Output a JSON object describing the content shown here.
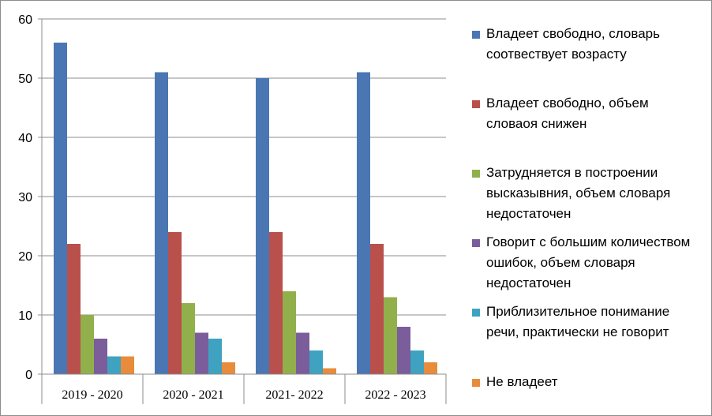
{
  "chart_data": {
    "type": "bar",
    "categories": [
      "2019 - 2020",
      "2020 - 2021",
      "2021- 2022",
      "2022 - 2023"
    ],
    "series": [
      {
        "name": "Владеет  свободно, словарь соотвествует возрасту",
        "color": "#4a76b4",
        "values": [
          56,
          51,
          50,
          51
        ]
      },
      {
        "name": "Владеет свободно, объем словаоя снижен",
        "color": "#b9504c",
        "values": [
          22,
          24,
          24,
          22
        ]
      },
      {
        "name": "Затрудняется в построении высказывния, объем словаря недостаточен",
        "color": "#91b04c",
        "values": [
          10,
          12,
          14,
          13
        ]
      },
      {
        "name": "Говорит с большим количеством ошибок, объем словаря недостаточен",
        "color": "#7a5d9a",
        "values": [
          6,
          7,
          7,
          8
        ]
      },
      {
        "name": "Приблизительное понимание речи, практически не говорит",
        "color": "#3fa2c0",
        "values": [
          3,
          6,
          4,
          4
        ]
      },
      {
        "name": "Не владеет",
        "color": "#e88c3b",
        "values": [
          3,
          2,
          1,
          2
        ]
      }
    ],
    "ylim": [
      0,
      60
    ],
    "yticks": [
      "0",
      "10",
      "20",
      "30",
      "40",
      "50",
      "60"
    ],
    "grid": true,
    "legend_position": "right"
  }
}
